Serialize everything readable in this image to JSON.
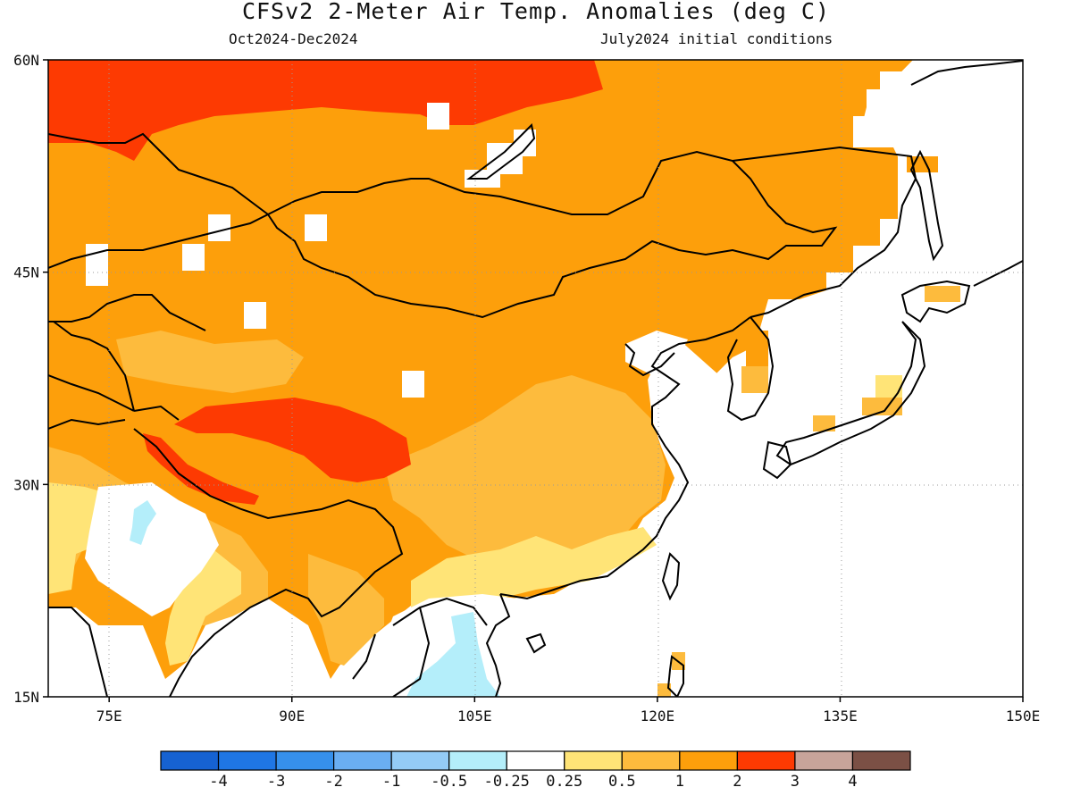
{
  "title": "CFSv2 2-Meter Air Temp. Anomalies (deg C)",
  "subtitle_left": "Oct2024-Dec2024",
  "subtitle_right": "July2024 initial conditions",
  "map": {
    "lon_range": [
      70,
      150
    ],
    "lat_range": [
      15,
      60
    ],
    "lat_labels": [
      "60N",
      "45N",
      "30N",
      "15N"
    ],
    "lon_labels": [
      "75E",
      "90E",
      "105E",
      "120E",
      "135E",
      "150E"
    ]
  },
  "legend": {
    "labels": [
      "-4",
      "-3",
      "-2",
      "-1",
      "-0.5",
      "-0.25",
      "0.25",
      "0.5",
      "1",
      "2",
      "3",
      "4"
    ],
    "colors": [
      "#1662d2",
      "#1f76e4",
      "#3690ec",
      "#6aaef2",
      "#94cbf6",
      "#b4eefa",
      "#ffffff",
      "#ffe477",
      "#fdbb3d",
      "#fd9f0b",
      "#fd3a02",
      "#c8a49a",
      "#7b5045"
    ]
  },
  "anomaly_palette": {
    "weak_warm": "#ffe477",
    "moderate_warm": "#fdbb3d",
    "strong_warm": "#fd9f0b",
    "very_warm": "#fd3a02",
    "weak_cool": "#b4eefa"
  }
}
